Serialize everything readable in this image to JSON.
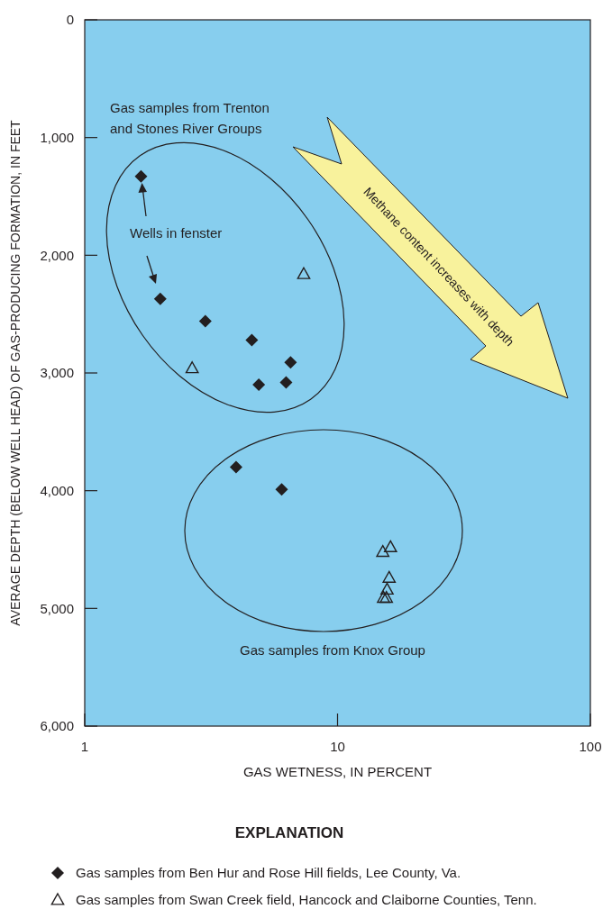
{
  "chart_data": {
    "type": "scatter",
    "xlabel": "GAS WETNESS, IN PERCENT",
    "ylabel": "AVERAGE DEPTH (BELOW WELL HEAD) OF GAS-PRODUCING FORMATION, IN FEET",
    "log": "x",
    "xlim": [
      1,
      100
    ],
    "xticks": [
      1,
      10,
      100
    ],
    "ylim": [
      6000,
      0
    ],
    "yticks": [
      0,
      {
        "value": 1000,
        "label": "1,000"
      },
      {
        "value": 2000,
        "label": "2,000"
      },
      {
        "value": 3000,
        "label": "3,000"
      },
      {
        "value": 4000,
        "label": "4,000"
      },
      {
        "value": 5000,
        "label": "5,000"
      },
      {
        "value": 6000,
        "label": "6,000"
      }
    ],
    "grid": false,
    "legend": "bottom",
    "legend_title": "EXPLANATION",
    "annotations": [
      "Gas samples from Trenton and Stones River Groups",
      "Wells in fenster",
      "Methane content increases with depth",
      "Gas samples from Knox Group"
    ],
    "series": [
      {
        "name": "Gas samples from Ben Hur and Rose Hill fields, Lee County, Va.",
        "color": "#231f20",
        "marker": "diamond",
        "x": [
          1.67,
          1.99,
          3.0,
          4.58,
          6.52,
          4.88,
          6.26,
          3.97,
          6.01
        ],
        "values": [
          1330,
          2370,
          2560,
          2720,
          2910,
          3100,
          3080,
          3800,
          3990
        ]
      },
      {
        "name": "Gas samples from Swan Creek field, Hancock and Claiborne Counties, Tenn.",
        "color": "#231f20",
        "marker": "triangle",
        "x": [
          7.35,
          2.66,
          15.1,
          16.2,
          16.0,
          15.7,
          15.2,
          15.6
        ],
        "values": [
          2160,
          2960,
          4520,
          4480,
          4740,
          4840,
          4910,
          4910
        ]
      }
    ]
  }
}
